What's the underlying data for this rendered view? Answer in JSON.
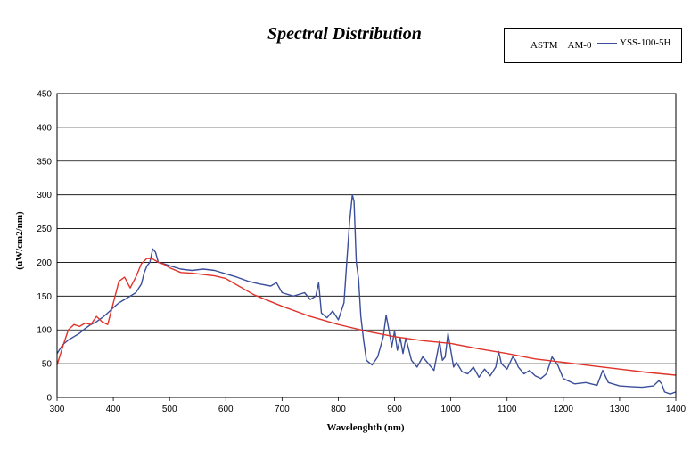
{
  "chart_data": {
    "type": "line",
    "title": "Spectral Distribution",
    "xlabel": "Wavelenghth (nm)",
    "ylabel": "(uW/cm2/nm)",
    "xlim": [
      300,
      1400
    ],
    "ylim": [
      0,
      450
    ],
    "xticks": [
      300,
      400,
      500,
      600,
      700,
      800,
      900,
      1000,
      1100,
      1200,
      1300,
      1400
    ],
    "yticks": [
      0,
      50,
      100,
      150,
      200,
      250,
      300,
      350,
      400,
      450
    ],
    "grid": true,
    "legend_position": "top-right",
    "series": [
      {
        "name": "ASTM　AM-0",
        "color": "#e0332a",
        "x": [
          300,
          310,
          320,
          330,
          340,
          350,
          360,
          370,
          380,
          390,
          400,
          410,
          420,
          430,
          440,
          450,
          460,
          470,
          480,
          490,
          500,
          520,
          540,
          560,
          580,
          600,
          650,
          700,
          750,
          800,
          850,
          900,
          950,
          1000,
          1050,
          1100,
          1150,
          1200,
          1250,
          1300,
          1350,
          1400
        ],
        "values": [
          48,
          75,
          100,
          108,
          105,
          110,
          108,
          120,
          112,
          108,
          140,
          172,
          178,
          162,
          178,
          198,
          206,
          205,
          200,
          197,
          192,
          185,
          184,
          182,
          180,
          176,
          152,
          135,
          120,
          108,
          98,
          90,
          84,
          80,
          72,
          65,
          57,
          52,
          47,
          42,
          37,
          33
        ]
      },
      {
        "name": "YSS-100-5H",
        "color": "#3a4e9a",
        "x": [
          300,
          310,
          320,
          330,
          340,
          350,
          360,
          370,
          380,
          390,
          400,
          410,
          420,
          430,
          440,
          450,
          455,
          460,
          465,
          470,
          475,
          480,
          490,
          500,
          520,
          540,
          560,
          580,
          600,
          620,
          640,
          660,
          680,
          690,
          700,
          720,
          740,
          750,
          760,
          765,
          770,
          780,
          790,
          800,
          810,
          815,
          820,
          825,
          828,
          832,
          836,
          840,
          845,
          850,
          860,
          870,
          880,
          885,
          890,
          895,
          900,
          905,
          910,
          915,
          920,
          930,
          940,
          950,
          960,
          970,
          980,
          985,
          990,
          995,
          1000,
          1005,
          1010,
          1020,
          1030,
          1040,
          1050,
          1060,
          1070,
          1080,
          1085,
          1090,
          1100,
          1110,
          1115,
          1120,
          1130,
          1140,
          1150,
          1160,
          1170,
          1180,
          1190,
          1200,
          1220,
          1240,
          1260,
          1270,
          1280,
          1300,
          1320,
          1340,
          1360,
          1370,
          1375,
          1380,
          1390,
          1400
        ],
        "values": [
          65,
          78,
          85,
          90,
          95,
          102,
          108,
          112,
          118,
          125,
          133,
          140,
          145,
          150,
          155,
          168,
          185,
          195,
          200,
          220,
          215,
          200,
          198,
          195,
          190,
          188,
          190,
          188,
          183,
          178,
          172,
          168,
          165,
          170,
          155,
          150,
          155,
          145,
          150,
          170,
          125,
          118,
          128,
          115,
          140,
          200,
          260,
          300,
          290,
          200,
          175,
          120,
          85,
          55,
          48,
          60,
          90,
          122,
          100,
          75,
          98,
          70,
          88,
          65,
          88,
          55,
          45,
          60,
          50,
          40,
          83,
          55,
          60,
          95,
          70,
          45,
          52,
          38,
          35,
          45,
          30,
          42,
          32,
          45,
          68,
          50,
          42,
          60,
          55,
          45,
          35,
          40,
          32,
          28,
          35,
          60,
          48,
          28,
          20,
          22,
          18,
          40,
          22,
          17,
          16,
          15,
          17,
          25,
          20,
          8,
          5,
          8
        ]
      }
    ]
  }
}
